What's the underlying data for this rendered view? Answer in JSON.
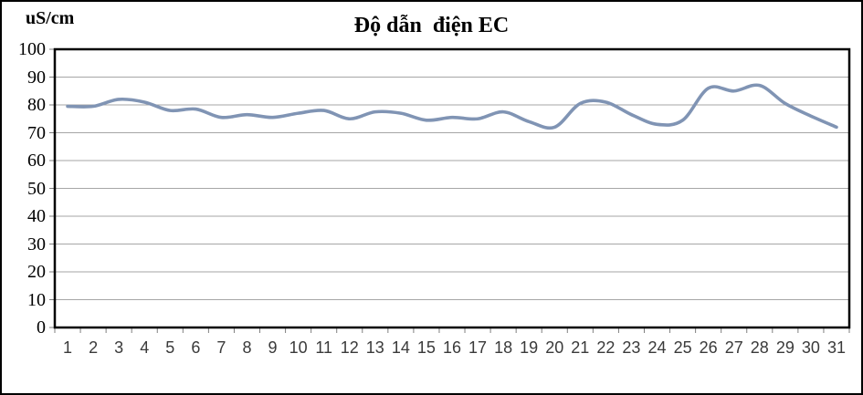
{
  "figure": {
    "title": "Độ dẫn  điện EC",
    "unit_label": "uS/cm"
  },
  "chart_data": {
    "type": "line",
    "title": "Độ dẫn  điện EC",
    "ylabel": "uS/cm",
    "xlabel": "",
    "categories": [
      1,
      2,
      3,
      4,
      5,
      6,
      7,
      8,
      9,
      10,
      11,
      12,
      13,
      14,
      15,
      16,
      17,
      18,
      19,
      20,
      21,
      22,
      23,
      24,
      25,
      26,
      27,
      28,
      29,
      30,
      31
    ],
    "series": [
      {
        "name": "EC",
        "values": [
          79.5,
          79.5,
          82,
          81,
          78,
          78.5,
          75.5,
          76.5,
          75.5,
          77,
          78,
          75,
          77.5,
          77,
          74.5,
          75.5,
          75,
          77.5,
          74,
          72,
          80.5,
          81,
          76.5,
          73,
          74.5,
          86,
          85,
          87,
          80.5,
          76,
          72
        ]
      }
    ],
    "ylim": [
      0,
      100
    ],
    "ytick_step": 10,
    "grid": true,
    "legend": "none",
    "smooth": true,
    "colors": {
      "line": "#8094B4",
      "grid": "#A6A6A6",
      "tick": "#7F7F7F",
      "axis": "#000000",
      "x_label_text": "#3A3A3A",
      "y_label_text": "#000000",
      "background": "#FFFFFF"
    }
  }
}
